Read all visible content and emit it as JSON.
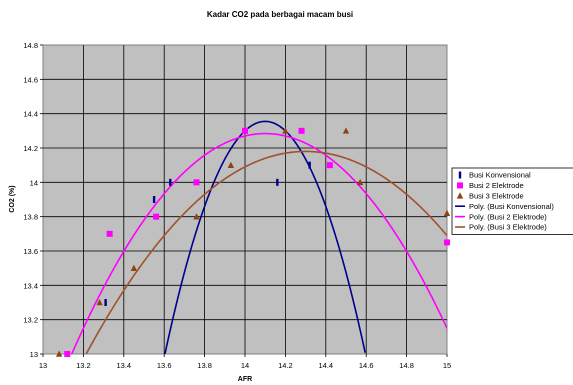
{
  "chart_data": {
    "type": "scatter",
    "title": "Kadar CO2 pada berbagai macam busi",
    "xlabel": "AFR",
    "ylabel": "CO2 (%)",
    "xlim": [
      13,
      15
    ],
    "ylim": [
      13,
      14.8
    ],
    "x_ticks": [
      "13",
      "13.2",
      "13.4",
      "13.6",
      "13.8",
      "14",
      "14.2",
      "14.4",
      "14.6",
      "14.8",
      "15"
    ],
    "y_ticks": [
      "13",
      "13.2",
      "13.4",
      "13.6",
      "13.8",
      "14",
      "14.2",
      "14.4",
      "14.6",
      "14.8"
    ],
    "grid": true,
    "legend_position": "right",
    "series": [
      {
        "name": "Busi Konvensional",
        "marker": "dash",
        "color": "#00008B",
        "points": [
          [
            13.31,
            13.3
          ],
          [
            13.55,
            13.9
          ],
          [
            13.63,
            14.0
          ],
          [
            14.16,
            14.0
          ],
          [
            14.32,
            14.1
          ]
        ]
      },
      {
        "name": "Busi 2 Elektrode",
        "marker": "square",
        "color": "#FF00FF",
        "points": [
          [
            13.12,
            13.0
          ],
          [
            13.33,
            13.7
          ],
          [
            13.56,
            13.8
          ],
          [
            13.76,
            14.0
          ],
          [
            14.0,
            14.3
          ],
          [
            14.28,
            14.3
          ],
          [
            14.42,
            14.1
          ],
          [
            15.0,
            13.65
          ]
        ]
      },
      {
        "name": "Busi 3 Elektrode",
        "marker": "triangle",
        "color": "#8B4513",
        "points": [
          [
            13.08,
            13.0
          ],
          [
            13.28,
            13.3
          ],
          [
            13.45,
            13.5
          ],
          [
            13.76,
            13.8
          ],
          [
            13.93,
            14.1
          ],
          [
            14.2,
            14.3
          ],
          [
            14.5,
            14.3
          ],
          [
            14.57,
            14.0
          ],
          [
            15.0,
            13.82
          ]
        ]
      },
      {
        "name": "Poly. (Busi Konvensional)",
        "type": "trendline",
        "color": "#00008B",
        "coef": [
          -5.5,
          155.1,
          -1079.1
        ]
      },
      {
        "name": "Poly. (Busi 2 Elektrode)",
        "type": "trendline",
        "color": "#FF00FF",
        "coef": [
          -1.4,
          39.48,
          -264.05
        ]
      },
      {
        "name": "Poly. (Busi 3 Elektrode)",
        "type": "trendline",
        "color": "#A0522D",
        "coef": [
          -1.0,
          28.6,
          -190.31
        ]
      }
    ]
  }
}
